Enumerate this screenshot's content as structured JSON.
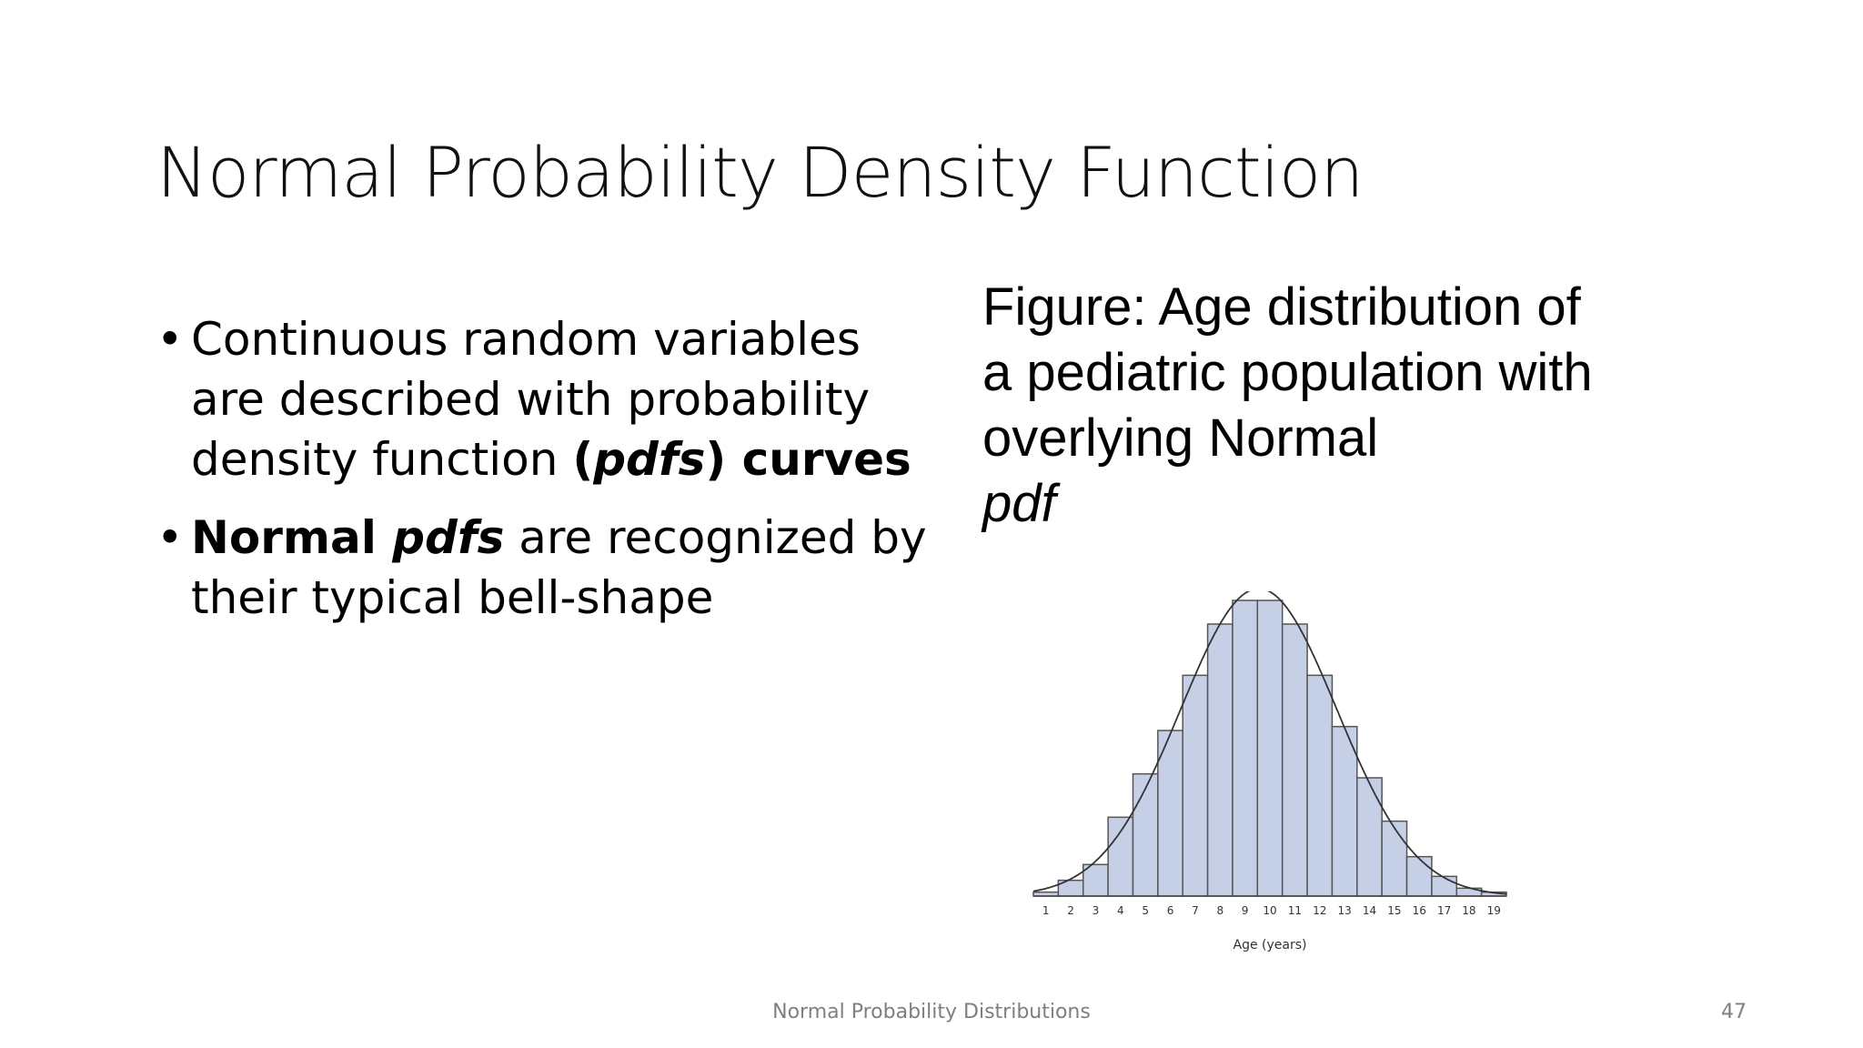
{
  "slide": {
    "title": "Normal Probability Density Function",
    "bullets": [
      {
        "parts": [
          {
            "text": "Continuous random variables are described with probability density function ",
            "bold": false,
            "italic": false
          },
          {
            "text": "(",
            "bold": true,
            "italic": false
          },
          {
            "text": "pdfs",
            "bold": true,
            "italic": true
          },
          {
            "text": ") curves",
            "bold": true,
            "italic": false
          }
        ]
      },
      {
        "parts": [
          {
            "text": "Normal ",
            "bold": true,
            "italic": false
          },
          {
            "text": "pdfs",
            "bold": true,
            "italic": true
          },
          {
            "text": " are recognized by their typical bell-shape",
            "bold": false,
            "italic": false
          }
        ]
      }
    ],
    "caption": {
      "main": "Figure: Age distribution of a pediatric population with overlying Normal",
      "italic": "pdf"
    },
    "footer": "Normal Probability Distributions",
    "page_number": "47"
  },
  "chart_data": {
    "type": "bar",
    "categories": [
      "1",
      "2",
      "3",
      "4",
      "5",
      "6",
      "7",
      "8",
      "9",
      "10",
      "11",
      "12",
      "13",
      "14",
      "15",
      "16",
      "17",
      "18",
      "19"
    ],
    "values": [
      1,
      4,
      8,
      20,
      31,
      42,
      56,
      69,
      75,
      75,
      69,
      56,
      43,
      30,
      19,
      10,
      5,
      2,
      1
    ],
    "xlabel": "Age (years)",
    "ylabel": "",
    "overlay": "normal-pdf",
    "grid": false,
    "bar_fill": "#c5d0e6",
    "bar_stroke": "#555555",
    "curve_color": "#333333"
  }
}
